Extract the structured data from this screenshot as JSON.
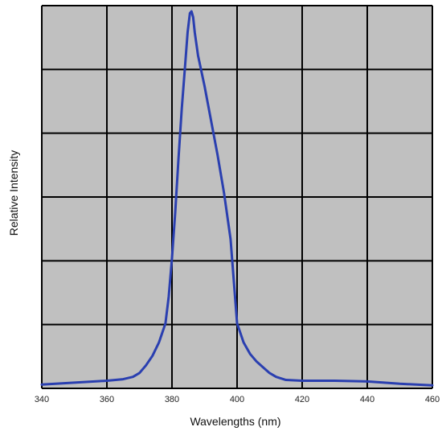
{
  "chart_data": {
    "type": "line",
    "title": "",
    "xlabel": "Wavelengths (nm)",
    "ylabel": "Relative Intensity",
    "xlim": [
      340,
      460
    ],
    "ylim": [
      0,
      1
    ],
    "x_ticks": [
      340,
      360,
      380,
      400,
      420,
      440,
      460
    ],
    "x_tick_labels": [
      "340",
      "360",
      "380",
      "400",
      "420",
      "440",
      "460"
    ],
    "y_gridlines": 6,
    "grid": true,
    "legend": "none",
    "background_color": "#c0c0c0",
    "grid_color": "#000000",
    "series": [
      {
        "color": "#2a3fb0",
        "x": [
          340,
          350,
          360,
          365,
          368,
          370,
          372,
          374,
          376,
          378,
          379,
          380,
          381,
          382,
          383,
          384,
          384.8,
          385.5,
          386,
          386.5,
          387,
          388,
          389,
          390,
          392,
          394,
          396,
          398,
          399,
          400,
          402,
          404,
          406,
          408,
          410,
          412,
          415,
          420,
          430,
          440,
          450,
          460
        ],
        "y": [
          0.01,
          0.015,
          0.02,
          0.024,
          0.03,
          0.04,
          0.06,
          0.085,
          0.12,
          0.17,
          0.24,
          0.34,
          0.46,
          0.6,
          0.73,
          0.84,
          0.93,
          0.98,
          0.985,
          0.97,
          0.93,
          0.87,
          0.83,
          0.79,
          0.7,
          0.61,
          0.51,
          0.39,
          0.28,
          0.17,
          0.12,
          0.09,
          0.07,
          0.055,
          0.04,
          0.03,
          0.022,
          0.02,
          0.02,
          0.018,
          0.012,
          0.008
        ]
      }
    ]
  }
}
